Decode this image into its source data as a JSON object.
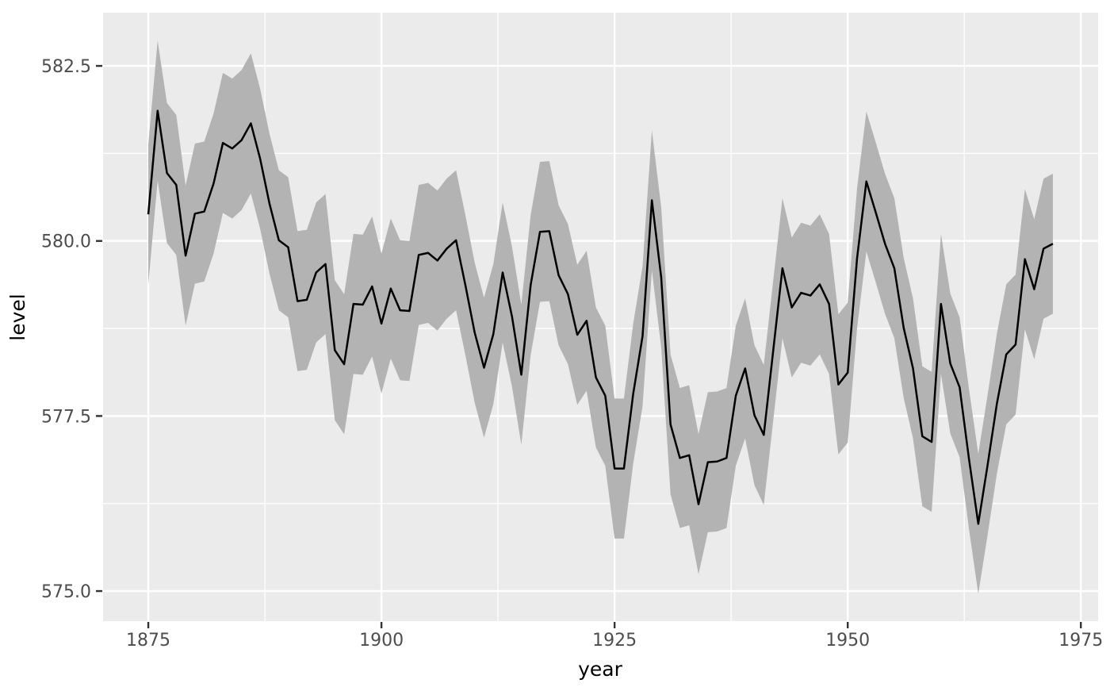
{
  "chart_data": {
    "type": "line",
    "title": "",
    "xlabel": "year",
    "ylabel": "level",
    "years": {
      "start": 1875,
      "end": 1972,
      "step": 1
    },
    "series": [
      {
        "name": "level",
        "values": [
          580.38,
          581.86,
          580.97,
          580.8,
          579.79,
          580.39,
          580.42,
          580.82,
          581.4,
          581.32,
          581.44,
          581.68,
          581.17,
          580.53,
          580.01,
          579.91,
          579.14,
          579.16,
          579.55,
          579.67,
          578.44,
          578.24,
          579.1,
          579.09,
          579.35,
          578.82,
          579.32,
          579.01,
          579.0,
          579.8,
          579.83,
          579.72,
          579.89,
          580.01,
          579.37,
          578.69,
          578.19,
          578.67,
          579.55,
          578.92,
          578.09,
          579.37,
          580.13,
          580.14,
          579.51,
          579.24,
          578.66,
          578.86,
          578.05,
          577.79,
          576.75,
          576.75,
          577.82,
          578.64,
          580.58,
          579.48,
          577.38,
          576.9,
          576.94,
          576.24,
          576.84,
          576.85,
          576.9,
          577.79,
          578.18,
          577.51,
          577.23,
          578.42,
          579.61,
          579.05,
          579.26,
          579.22,
          579.38,
          579.1,
          577.95,
          578.12,
          579.75,
          580.85,
          580.41,
          579.96,
          579.61,
          578.76,
          578.18,
          577.21,
          577.13,
          579.1,
          578.25,
          577.91,
          576.89,
          575.96,
          576.8,
          577.68,
          578.38,
          578.52,
          579.74,
          579.31,
          579.89,
          579.96
        ]
      }
    ],
    "ribbon": {
      "offset": 1.0,
      "description": "level - 1 to level + 1",
      "fill": "#B3B3B3"
    },
    "xlim": [
      1870.15,
      1976.85
    ],
    "ylim": [
      574.57,
      583.26
    ],
    "x_ticks": [
      {
        "v": 1875,
        "label": "1875"
      },
      {
        "v": 1900,
        "label": "1900"
      },
      {
        "v": 1925,
        "label": "1925"
      },
      {
        "v": 1950,
        "label": "1950"
      },
      {
        "v": 1975,
        "label": "1975"
      }
    ],
    "y_ticks": [
      {
        "v": 575.0,
        "label": "575.0"
      },
      {
        "v": 577.5,
        "label": "577.5"
      },
      {
        "v": 580.0,
        "label": "580.0"
      },
      {
        "v": 582.5,
        "label": "582.5"
      }
    ],
    "x_minor": [
      1887.5,
      1912.5,
      1937.5,
      1962.5
    ],
    "y_minor": [
      576.25,
      578.75,
      581.25
    ],
    "grid": "on",
    "legend": "none",
    "colors": {
      "line": "#000000",
      "ribbon": "#B3B3B3",
      "panel_bg": "#EBEBEB",
      "grid_major": "#FFFFFF",
      "grid_minor": "#FFFFFF",
      "tick_mark": "#333333",
      "tick_text": "#4D4D4D",
      "axis_title": "#000000",
      "outer_bg": "#FFFFFF"
    }
  }
}
